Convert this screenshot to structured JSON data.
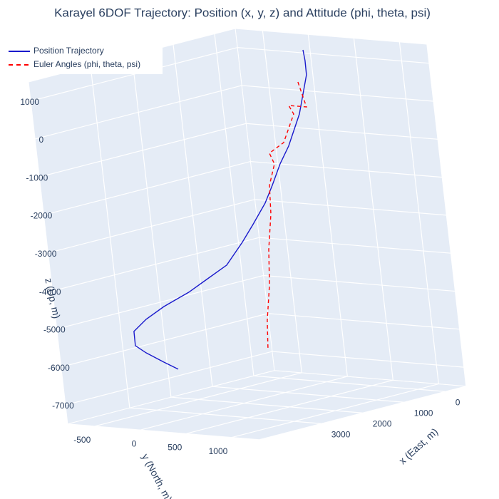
{
  "chart_data": {
    "type": "scatter3d",
    "title": "Karayel 6DOF Trajectory: Position (x, y, z) and Attitude (phi, theta, psi)",
    "xlabel": "x (East, m)",
    "ylabel": "y (North, m)",
    "zlabel": "z (Up, m)",
    "xlim": [
      -500,
      4500
    ],
    "ylim": [
      -800,
      1300
    ],
    "zlim": [
      -7500,
      1500
    ],
    "xticks": [
      0,
      1000,
      2000,
      3000
    ],
    "yticks": [
      -500,
      0,
      500,
      1000
    ],
    "zticks": [
      1000,
      0,
      -1000,
      -2000,
      -3000,
      -4000,
      -5000,
      -6000,
      -7000
    ],
    "grid": true,
    "legend": "top-left",
    "series": [
      {
        "name": "Position Trajectory",
        "color": "#1a1acc",
        "dash": "solid",
        "x": [
          -334,
          -355,
          -350,
          -78,
          260,
          509,
          750,
          966,
          1308,
          1607,
          2036,
          2544,
          2997,
          3621,
          4074,
          4392,
          4397,
          4165,
          3771,
          3455
        ],
        "y": [
          0,
          0,
          0,
          0,
          0,
          0,
          0,
          0,
          0,
          0,
          0,
          0,
          0,
          0,
          0,
          0,
          0,
          0,
          0,
          0
        ],
        "z": [
          1142,
          855,
          481,
          -474,
          -1223,
          -1622,
          -2117,
          -2526,
          -2992,
          -3377,
          -3856,
          -4089,
          -4299,
          -4499,
          -4709,
          -4938,
          -5312,
          -5565,
          -5920,
          -6196
        ]
      },
      {
        "name": "Euler Angles (phi, theta, psi)",
        "color": "#ff0000",
        "dash": "dash",
        "x": [
          -130,
          -264,
          150,
          56,
          367,
          731,
          642,
          817,
          860,
          1006,
          1085,
          1232,
          1288
        ],
        "y": [
          0,
          0,
          0,
          0,
          0,
          0,
          0,
          0,
          0,
          0,
          0,
          0,
          0
        ],
        "z": [
          355,
          -339,
          -185,
          -436,
          -1099,
          -1278,
          -1585,
          -2098,
          -2837,
          -3734,
          -4649,
          -5546,
          -6243
        ]
      }
    ]
  }
}
